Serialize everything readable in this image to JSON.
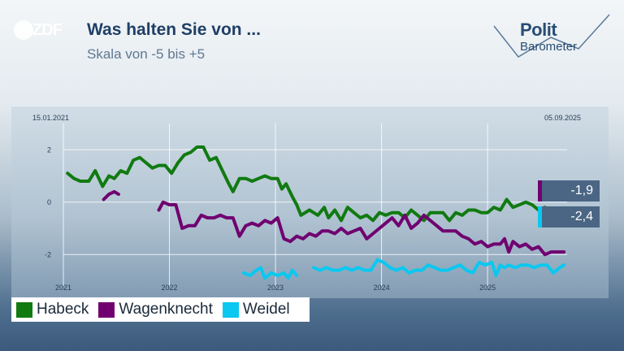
{
  "header": {
    "logo_text": "ZDF",
    "title": "Was halten Sie von ...",
    "subtitle": "Skala von -5 bis +5",
    "brand_line1": "Polit",
    "brand_line2": "Barometer"
  },
  "chart_data": {
    "type": "line",
    "start_date_label": "15.01.2021",
    "end_date_label": "05.09.2025",
    "ylim": [
      -3.2,
      3.0
    ],
    "y_ticks": [
      2,
      0,
      -2
    ],
    "y_tick_labels": [
      "2",
      "0",
      "-2"
    ],
    "x_ticks": [
      2021,
      2022,
      2023,
      2024,
      2025
    ],
    "x_tick_labels": [
      "2021",
      "2022",
      "2023",
      "2024",
      "2025"
    ],
    "xlim": [
      2021.0,
      2025.75
    ],
    "grid": true,
    "legend_position": "bottom-left",
    "series": [
      {
        "name": "Habeck",
        "color": "#117a11",
        "x": [
          2021.04,
          2021.1,
          2021.16,
          2021.24,
          2021.3,
          2021.37,
          2021.43,
          2021.48,
          2021.54,
          2021.6,
          2021.66,
          2021.72,
          2021.78,
          2021.84,
          2021.9,
          2021.96,
          2022.02,
          2022.08,
          2022.14,
          2022.2,
          2022.26,
          2022.32,
          2022.38,
          2022.44,
          2022.5,
          2022.56,
          2022.6,
          2022.66,
          2022.72,
          2022.78,
          2022.84,
          2022.9,
          2022.96,
          2023.02,
          2023.06,
          2023.1,
          2023.16,
          2023.2,
          2023.24,
          2023.32,
          2023.4,
          2023.46,
          2023.5,
          2023.56,
          2023.62,
          2023.68,
          2023.74,
          2023.8,
          2023.86,
          2023.92,
          2023.98,
          2024.04,
          2024.1,
          2024.16,
          2024.22,
          2024.28,
          2024.34,
          2024.4,
          2024.46,
          2024.52,
          2024.58,
          2024.64,
          2024.7,
          2024.76,
          2024.82,
          2024.88,
          2024.94,
          2025.0,
          2025.06,
          2025.12,
          2025.18,
          2025.24,
          2025.3,
          2025.36,
          2025.42,
          2025.48,
          2025.54,
          2025.6,
          2025.66
        ],
        "y": [
          1.1,
          0.9,
          0.8,
          0.8,
          1.2,
          0.6,
          1.0,
          0.9,
          1.2,
          1.1,
          1.6,
          1.7,
          1.5,
          1.3,
          1.4,
          1.4,
          1.1,
          1.5,
          1.8,
          1.9,
          2.1,
          2.1,
          1.6,
          1.7,
          1.2,
          0.7,
          0.4,
          0.9,
          0.9,
          0.8,
          0.9,
          1.0,
          0.9,
          0.9,
          0.5,
          0.7,
          0.2,
          -0.1,
          -0.5,
          -0.3,
          -0.5,
          -0.2,
          -0.6,
          -0.3,
          -0.7,
          -0.2,
          -0.4,
          -0.6,
          -0.5,
          -0.7,
          -0.4,
          -0.5,
          -0.4,
          -0.4,
          -0.6,
          -0.3,
          -0.5,
          -0.7,
          -0.4,
          -0.4,
          -0.4,
          -0.7,
          -0.4,
          -0.5,
          -0.3,
          -0.3,
          -0.4,
          -0.4,
          -0.2,
          -0.3,
          0.1,
          -0.2,
          -0.1,
          0.0,
          -0.1,
          -0.3,
          -0.2,
          -0.4,
          -0.5
        ]
      },
      {
        "name": "Wagenknecht",
        "color": "#700070",
        "x": [
          2021.38,
          2021.43,
          2021.48,
          2021.52,
          null,
          2021.9,
          2021.94,
          2022.0,
          2022.06,
          2022.12,
          2022.18,
          2022.24,
          2022.3,
          2022.36,
          2022.42,
          2022.48,
          2022.54,
          2022.6,
          2022.66,
          2022.72,
          2022.78,
          2022.84,
          2022.9,
          2022.96,
          2023.02,
          2023.08,
          2023.14,
          2023.2,
          2023.26,
          2023.32,
          2023.38,
          2023.44,
          2023.5,
          2023.56,
          2023.62,
          2023.68,
          2023.74,
          2023.8,
          2023.86,
          2023.92,
          2023.98,
          2024.04,
          2024.1,
          2024.16,
          2024.22,
          2024.28,
          2024.34,
          2024.4,
          2024.46,
          2024.52,
          2024.58,
          2024.64,
          2024.7,
          2024.76,
          2024.82,
          2024.88,
          2024.94,
          2025.0,
          2025.06,
          2025.12,
          2025.16,
          2025.2,
          2025.24,
          2025.3,
          2025.36,
          2025.42,
          2025.48,
          2025.54,
          2025.6,
          2025.66,
          2025.72
        ],
        "y": [
          0.1,
          0.3,
          0.4,
          0.3,
          null,
          -0.3,
          0.0,
          -0.1,
          -0.1,
          -1.0,
          -0.9,
          -0.9,
          -0.5,
          -0.6,
          -0.6,
          -0.5,
          -0.6,
          -0.6,
          -1.3,
          -0.9,
          -0.8,
          -0.9,
          -0.7,
          -0.8,
          -0.6,
          -1.4,
          -1.5,
          -1.3,
          -1.4,
          -1.2,
          -1.3,
          -1.1,
          -1.1,
          -1.2,
          -1.0,
          -1.2,
          -1.1,
          -1.0,
          -1.4,
          -1.2,
          -1.0,
          -0.8,
          -0.6,
          -0.9,
          -0.5,
          -1.0,
          -0.8,
          -0.5,
          -0.7,
          -0.9,
          -1.1,
          -1.1,
          -1.1,
          -1.3,
          -1.4,
          -1.6,
          -1.5,
          -1.7,
          -1.6,
          -1.6,
          -1.4,
          -1.9,
          -1.5,
          -1.7,
          -1.6,
          -1.8,
          -1.7,
          -2.0,
          -1.9,
          -1.9,
          -1.9
        ]
      },
      {
        "name": "Weidel",
        "color": "#0ac8f0",
        "x": [
          2022.7,
          2022.76,
          2022.82,
          2022.86,
          2022.9,
          2022.96,
          2023.02,
          2023.08,
          2023.12,
          2023.16,
          2023.2,
          null,
          2023.36,
          2023.42,
          2023.48,
          2023.54,
          2023.6,
          2023.66,
          2023.72,
          2023.78,
          2023.84,
          2023.9,
          2023.96,
          2024.02,
          2024.08,
          2024.14,
          2024.2,
          2024.26,
          2024.32,
          2024.38,
          2024.44,
          2024.5,
          2024.56,
          2024.62,
          2024.68,
          2024.74,
          2024.8,
          2024.86,
          2024.92,
          2024.98,
          2025.04,
          2025.08,
          2025.12,
          2025.16,
          2025.2,
          2025.26,
          2025.32,
          2025.38,
          2025.44,
          2025.5,
          2025.56,
          2025.62,
          2025.68,
          2025.72
        ],
        "y": [
          -2.7,
          -2.8,
          -2.6,
          -2.5,
          -2.9,
          -2.7,
          -2.8,
          -2.7,
          -2.9,
          -2.6,
          -2.8,
          null,
          -2.5,
          -2.6,
          -2.5,
          -2.6,
          -2.6,
          -2.5,
          -2.6,
          -2.5,
          -2.6,
          -2.6,
          -2.2,
          -2.3,
          -2.5,
          -2.6,
          -2.5,
          -2.7,
          -2.6,
          -2.6,
          -2.4,
          -2.5,
          -2.6,
          -2.6,
          -2.5,
          -2.4,
          -2.6,
          -2.7,
          -2.3,
          -2.4,
          -2.3,
          -2.8,
          -2.4,
          -2.5,
          -2.4,
          -2.5,
          -2.4,
          -2.4,
          -2.5,
          -2.4,
          -2.4,
          -2.7,
          -2.5,
          -2.4
        ]
      }
    ]
  },
  "badges": [
    {
      "label": "-1,9",
      "color": "#700070"
    },
    {
      "label": "-2,4",
      "color": "#0ac8f0"
    }
  ],
  "legend": [
    {
      "label": "Habeck",
      "color": "#117a11"
    },
    {
      "label": "Wagenknecht",
      "color": "#700070"
    },
    {
      "label": "Weidel",
      "color": "#0ac8f0"
    }
  ]
}
